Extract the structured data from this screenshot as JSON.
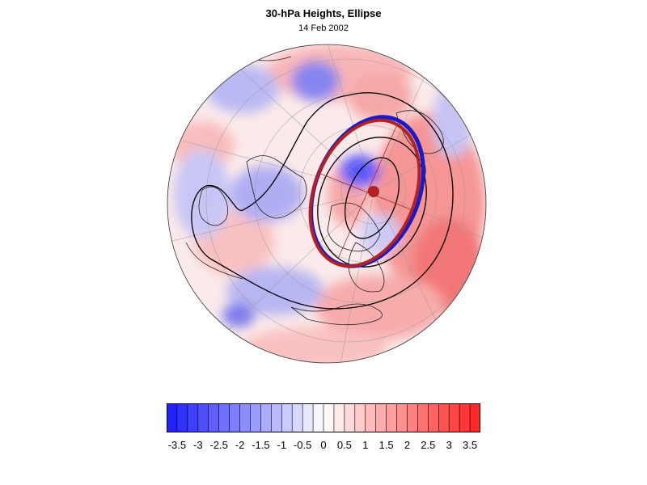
{
  "title": "30-hPa Heights, Ellipse",
  "subtitle": "14 Feb 2002",
  "colors": {
    "negative": "#1a1aff",
    "positive": "#ff2020",
    "ellipse_outer": "#b22222",
    "ellipse_blue": "#1a1acc",
    "contour": "#000000"
  },
  "colorbar": {
    "tick_labels": [
      "-3.5",
      "-3",
      "-2.5",
      "-2",
      "-1.5",
      "-1",
      "-0.5",
      "0",
      "0.5",
      "1",
      "1.5",
      "2",
      "2.5",
      "3",
      "3.5"
    ],
    "min": -3.75,
    "max": 3.75,
    "step": 0.25
  }
}
